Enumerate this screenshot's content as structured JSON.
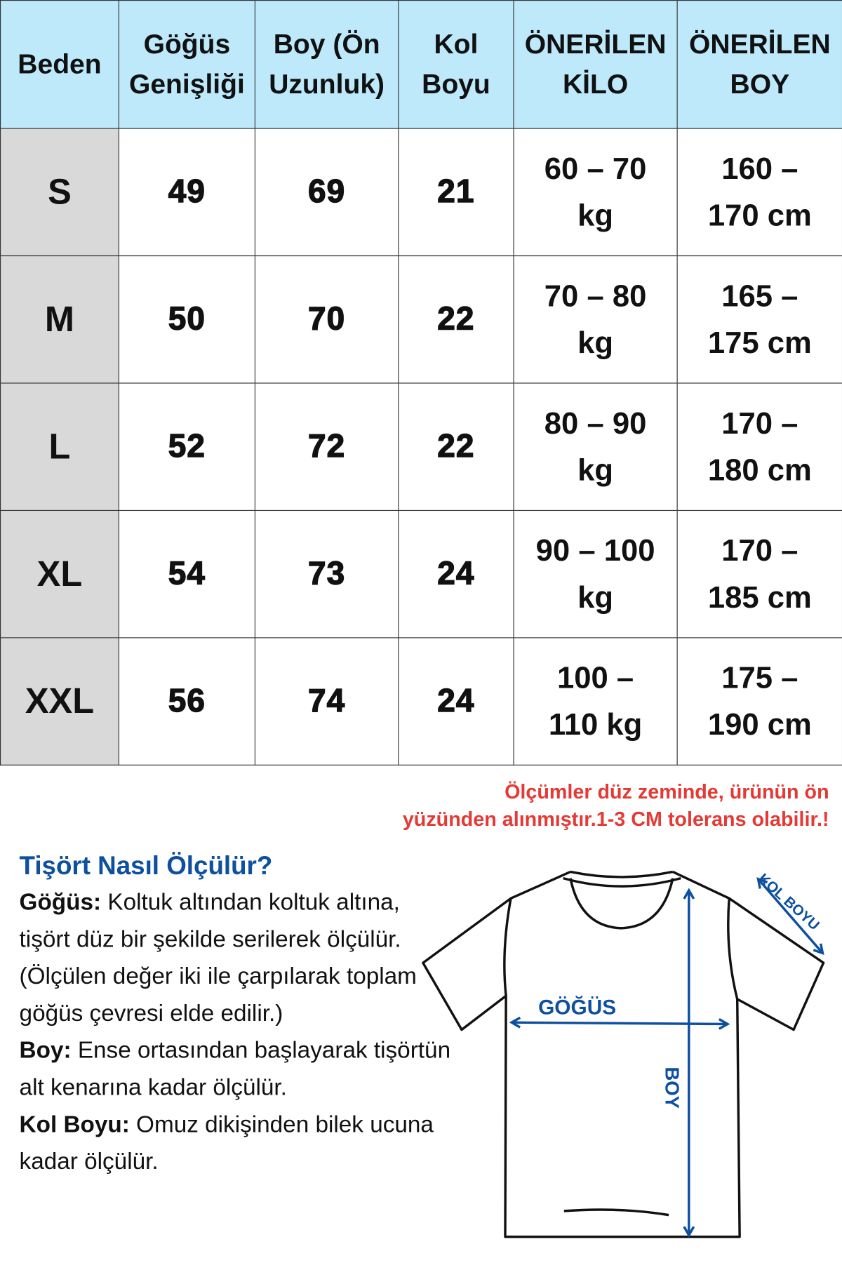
{
  "headers": {
    "size": "Beden",
    "chest_1": "Göğüs",
    "chest_2": "Genişliği",
    "length_1": "Boy (Ön",
    "length_2": "Uzunluk)",
    "sleeve_1": "Kol",
    "sleeve_2": "Boyu",
    "weight_1": "ÖNERİLEN",
    "weight_2": "KİLO",
    "height_1": "ÖNERİLEN",
    "height_2": "BOY"
  },
  "rows": [
    {
      "size": "S",
      "chest": "49",
      "length": "69",
      "sleeve": "21",
      "weight_1": "60 – 70",
      "weight_2": "kg",
      "height_1": "160 –",
      "height_2": "170 cm"
    },
    {
      "size": "M",
      "chest": "50",
      "length": "70",
      "sleeve": "22",
      "weight_1": "70 – 80",
      "weight_2": "kg",
      "height_1": "165 –",
      "height_2": "175 cm"
    },
    {
      "size": "L",
      "chest": "52",
      "length": "72",
      "sleeve": "22",
      "weight_1": "80 – 90",
      "weight_2": "kg",
      "height_1": "170 –",
      "height_2": "180 cm"
    },
    {
      "size": "XL",
      "chest": "54",
      "length": "73",
      "sleeve": "24",
      "weight_1": "90 – 100",
      "weight_2": "kg",
      "height_1": "170 –",
      "height_2": "185 cm"
    },
    {
      "size": "XXL",
      "chest": "56",
      "length": "74",
      "sleeve": "24",
      "weight_1": "100 –",
      "weight_2": "110 kg",
      "height_1": "175 –",
      "height_2": "190 cm"
    }
  ],
  "note": {
    "line_1": "Ölçümler düz zeminde, ürünün ön",
    "line_2": "yüzünden alınmıştır.1-3 CM tolerans olabilir.!"
  },
  "howto": {
    "title": "Tişört Nasıl Ölçülür?",
    "chest_label": "Göğüs:",
    "chest_text": " Koltuk altından koltuk altına, tişört düz bir şekilde serilerek ölçülür. (Ölçülen değer iki ile çarpılarak toplam göğüs çevresi elde edilir.)",
    "length_label": "Boy:",
    "length_text": " Ense ortasından başlayarak tişörtün alt kenarına kadar ölçülür.",
    "sleeve_label": "Kol Boyu:",
    "sleeve_text": " Omuz dikişinden bilek ucuna kadar ölçülür."
  },
  "diagram": {
    "chest": "GÖĞÜS",
    "length": "BOY",
    "sleeve": "KOL BOYU"
  },
  "colors": {
    "header_bg": "#bde9fb",
    "size_bg": "#d9d9d9",
    "note": "#e53935",
    "accent": "#0d4fa0"
  }
}
